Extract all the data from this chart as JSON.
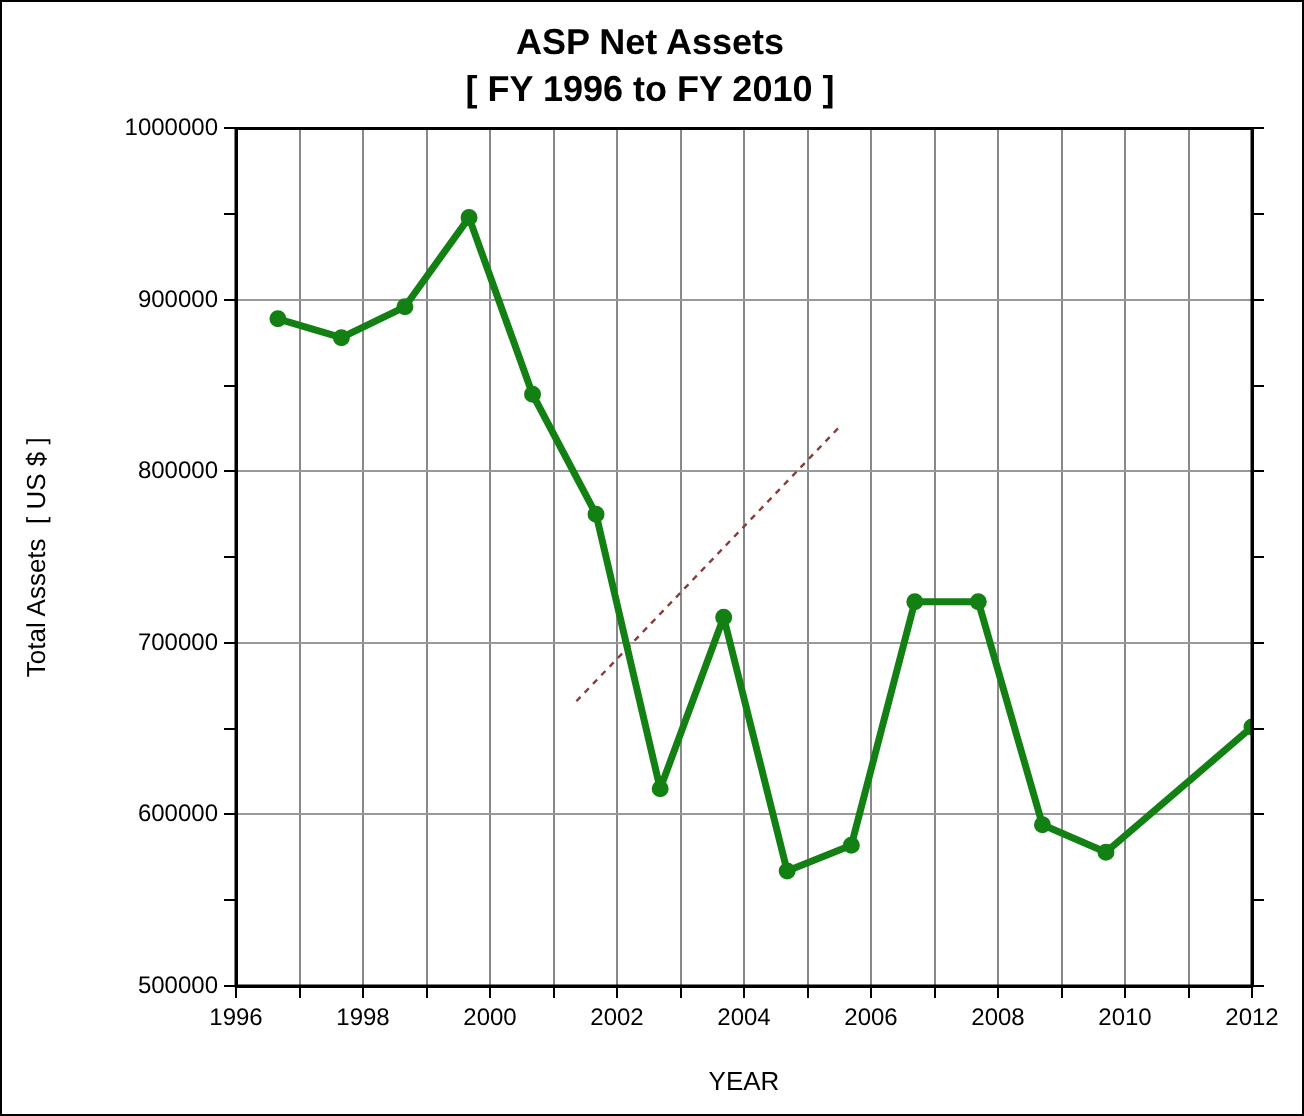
{
  "chart_data": {
    "type": "line",
    "title": "ASP Net Assets",
    "subtitle": "[ FY 1996 to FY 2010 ]",
    "xlabel": "YEAR",
    "ylabel": "Total Assets  [ US $ ]",
    "xlim": [
      1996,
      2012
    ],
    "xticks": [
      1996,
      {
        "value": 1997,
        "label": null
      },
      1998,
      {
        "value": 1999,
        "label": null
      },
      2000,
      {
        "value": 2001,
        "label": null
      },
      2002,
      {
        "value": 2003,
        "label": null
      },
      2004,
      {
        "value": 2005,
        "label": null
      },
      2006,
      {
        "value": 2007,
        "label": null
      },
      2008,
      {
        "value": 2009,
        "label": null
      },
      2010,
      {
        "value": 2011,
        "label": null
      },
      2012
    ],
    "ylim": [
      500000,
      1000000
    ],
    "yticks": [
      500000,
      {
        "value": 550000,
        "label": null
      },
      600000,
      {
        "value": 650000,
        "label": null
      },
      700000,
      {
        "value": 750000,
        "label": null
      },
      800000,
      {
        "value": 850000,
        "label": null
      },
      900000,
      {
        "value": 950000,
        "label": null
      },
      1000000
    ],
    "grid": true,
    "marker": "circle",
    "line_style": "solid",
    "series": [
      {
        "color": "#138013",
        "x": [
          1996.66,
          1997.66,
          1998.66,
          1999.67,
          2000.67,
          2001.67,
          2002.68,
          2003.68,
          2004.68,
          2005.69,
          2006.69,
          2007.69,
          2008.7,
          2009.7,
          2012
        ],
        "values": [
          889000,
          878000,
          896000,
          948000,
          845000,
          775000,
          615000,
          715000,
          567000,
          582000,
          724000,
          724000,
          594000,
          578000,
          651000
        ]
      },
      {
        "type": "line",
        "color": "#8b3a3a",
        "line_style": "dashed",
        "marker": "none",
        "x": [
          2001.36,
          2005.53
        ],
        "values": [
          666000,
          827000
        ]
      }
    ]
  }
}
